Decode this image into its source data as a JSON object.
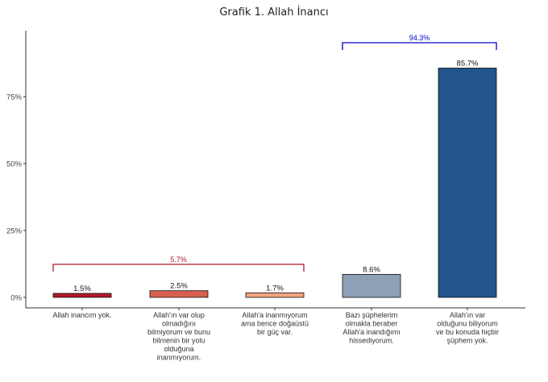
{
  "chart_data": {
    "type": "bar",
    "title": "Grafik 1. Allah İnancı",
    "xlabel": "",
    "ylabel": "",
    "ylim": [
      0,
      100
    ],
    "yticks": [
      0,
      25,
      50,
      75
    ],
    "ytick_labels": [
      "0%",
      "25%",
      "50%",
      "75%"
    ],
    "categories": [
      "Allah inancım yok.",
      "Allah'ın var olup olmadığını bilmiyorum ve bunu bilmenin bir yolu olduğuna inanmıyorum.",
      "Allah'a inanmıyorum ama bence doğaüstü bir güç var.",
      "Bazı şüphelerim olmakla beraber Allah'a inandığımı hissediyorum.",
      "Allah'ın var olduğunu biliyorum ve bu konuda hiçbir şüphem yok."
    ],
    "category_lines": [
      [
        "Allah inancım yok."
      ],
      [
        "Allah'ın var olup",
        "olmadığını",
        "bilmiyorum ve bunu",
        "bilmenin bir yolu",
        "olduğuna",
        "inanmıyorum."
      ],
      [
        "Allah'a inanmıyorum",
        "ama bence doğaüstü",
        "bir güç var."
      ],
      [
        "Bazı şüphelerim",
        "olmakla beraber",
        "Allah'a inandığımı",
        "hissediyorum."
      ],
      [
        "Allah'ın var",
        "olduğunu biliyorum",
        "ve bu konuda hiçbir",
        "şüphem yok."
      ]
    ],
    "values": [
      1.5,
      2.5,
      1.7,
      8.6,
      85.7
    ],
    "value_labels": [
      "1.5%",
      "2.5%",
      "1.7%",
      "8.6%",
      "85.7%"
    ],
    "colors": [
      "#b2182b",
      "#d6604d",
      "#f4a582",
      "#8da0b6",
      "#22558c"
    ],
    "brackets": [
      {
        "label": "5.7%",
        "from": 0,
        "to": 2,
        "color": "#b2182b"
      },
      {
        "label": "94.3%",
        "from": 3,
        "to": 4,
        "color": "#0000cc"
      }
    ],
    "grid": false,
    "legend": "none"
  }
}
